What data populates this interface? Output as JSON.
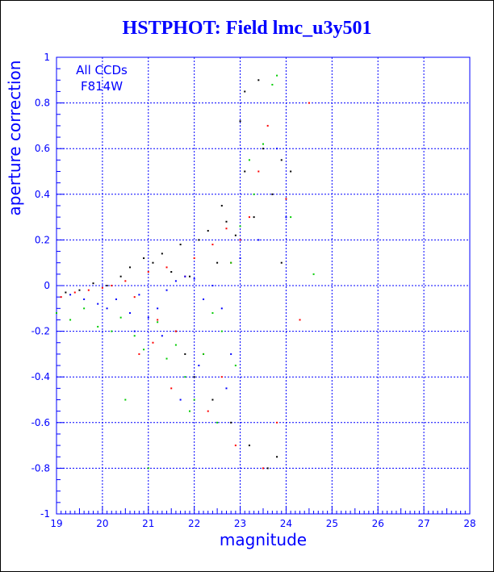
{
  "chart_data": {
    "type": "scatter",
    "title": "HSTPHOT: Field lmc_u3y501",
    "xlabel": "magnitude",
    "ylabel": "aperture correction",
    "xlim": [
      19,
      28
    ],
    "ylim": [
      -1,
      1
    ],
    "xticks": [
      19,
      20,
      21,
      22,
      23,
      24,
      25,
      26,
      27,
      28
    ],
    "yticks": [
      -1,
      -0.8,
      -0.6,
      -0.4,
      -0.2,
      0,
      0.2,
      0.4,
      0.6,
      0.8,
      1
    ],
    "grid": true,
    "annotation": [
      "All CCDs",
      "F814W"
    ],
    "colors": {
      "axis": "#0000ff",
      "grid": "#0000ff",
      "title": "#0000ff"
    },
    "series": [
      {
        "color": "#000000",
        "x": [
          19.2,
          19.5,
          19.8,
          20.1,
          20.4,
          20.6,
          20.9,
          21.1,
          21.3,
          21.5,
          21.7,
          21.9,
          22.1,
          22.3,
          22.5,
          22.7,
          22.9,
          23.1,
          23.3,
          23.5,
          23.7,
          23.9,
          24.1,
          23.0,
          22.8,
          23.2,
          23.6,
          23.8,
          22.4,
          21.8,
          22.0,
          23.4,
          23.9,
          21.6,
          22.6,
          23.1
        ],
        "y": [
          -0.03,
          -0.02,
          0.01,
          0.0,
          0.04,
          0.08,
          0.12,
          0.1,
          0.14,
          0.06,
          0.18,
          0.04,
          0.2,
          0.24,
          0.1,
          0.28,
          0.22,
          0.5,
          0.3,
          0.6,
          0.4,
          0.55,
          0.5,
          0.72,
          -0.6,
          -0.7,
          -0.8,
          -0.75,
          -0.5,
          -0.3,
          -0.4,
          0.9,
          0.1,
          -0.2,
          0.35,
          0.85
        ]
      },
      {
        "color": "#ff0000",
        "x": [
          19.1,
          19.4,
          19.7,
          20.0,
          20.2,
          20.5,
          20.7,
          21.0,
          21.2,
          21.4,
          21.6,
          21.8,
          22.0,
          22.2,
          22.4,
          22.6,
          22.8,
          23.0,
          23.2,
          23.4,
          23.6,
          23.8,
          24.3,
          24.5,
          21.5,
          22.3,
          22.7,
          20.8,
          21.1,
          22.9,
          24.0,
          23.5
        ],
        "y": [
          -0.05,
          -0.03,
          -0.02,
          -0.01,
          0.0,
          0.02,
          -0.05,
          0.06,
          -0.15,
          0.08,
          -0.2,
          0.04,
          0.12,
          -0.3,
          0.18,
          -0.4,
          0.1,
          0.2,
          0.3,
          0.5,
          0.7,
          -0.6,
          -0.15,
          0.8,
          -0.45,
          -0.55,
          0.25,
          -0.3,
          -0.25,
          -0.7,
          0.38,
          -0.8
        ]
      },
      {
        "color": "#00cc00",
        "x": [
          19.0,
          19.3,
          19.6,
          19.9,
          20.2,
          20.4,
          20.7,
          20.9,
          21.2,
          21.4,
          21.6,
          21.8,
          22.0,
          22.2,
          22.4,
          22.6,
          22.8,
          23.0,
          23.3,
          23.5,
          23.8,
          24.1,
          24.6,
          21.0,
          20.5,
          22.5,
          23.7,
          22.9,
          21.9,
          23.2
        ],
        "y": [
          -0.12,
          -0.15,
          -0.1,
          -0.18,
          -0.2,
          -0.14,
          -0.22,
          -0.28,
          -0.16,
          -0.32,
          -0.26,
          -0.4,
          -0.5,
          -0.3,
          -0.12,
          -0.2,
          0.1,
          0.26,
          0.4,
          0.62,
          0.92,
          0.3,
          0.05,
          -0.8,
          -0.5,
          -0.6,
          0.88,
          -0.35,
          -0.55,
          0.55
        ]
      },
      {
        "color": "#0000ff",
        "x": [
          19.3,
          19.6,
          19.9,
          20.1,
          20.3,
          20.6,
          20.8,
          21.0,
          21.2,
          21.4,
          21.6,
          21.8,
          22.0,
          22.2,
          22.4,
          22.6,
          22.8,
          23.0,
          23.4,
          23.8,
          24.0,
          21.7,
          22.1,
          22.7,
          20.7,
          21.3
        ],
        "y": [
          -0.04,
          -0.06,
          -0.08,
          -0.1,
          -0.06,
          -0.12,
          -0.04,
          -0.14,
          -0.1,
          -0.02,
          0.02,
          0.04,
          0.03,
          -0.06,
          0.0,
          -0.1,
          -0.3,
          0.12,
          0.2,
          0.6,
          0.3,
          -0.5,
          -0.35,
          -0.45,
          -0.2,
          -0.22
        ]
      }
    ]
  }
}
